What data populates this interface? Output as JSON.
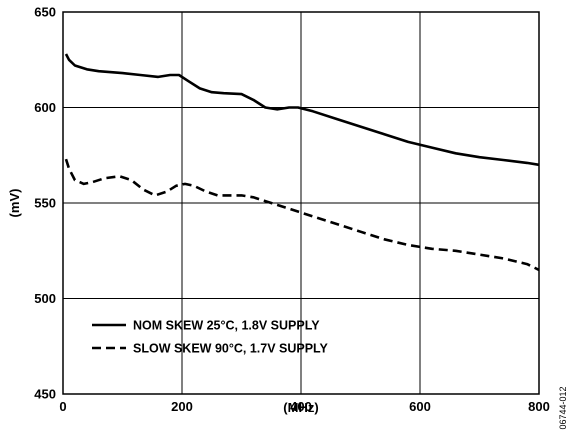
{
  "figure_id": "06744-012",
  "chart_data": {
    "type": "line",
    "title": "",
    "xlabel": "(MHz)",
    "ylabel": "(mV)",
    "xlim": [
      0,
      800
    ],
    "ylim": [
      450,
      650
    ],
    "xticks": [
      0,
      200,
      400,
      600,
      800
    ],
    "yticks": [
      450,
      500,
      550,
      600,
      650
    ],
    "grid": true,
    "legend_position": "bottom-left",
    "series": [
      {
        "name": "NOM SKEW 25°C, 1.8V SUPPLY",
        "style": "solid",
        "points": [
          [
            5,
            628
          ],
          [
            10,
            625
          ],
          [
            20,
            622
          ],
          [
            40,
            620
          ],
          [
            60,
            619
          ],
          [
            100,
            618
          ],
          [
            130,
            617
          ],
          [
            160,
            616
          ],
          [
            180,
            617
          ],
          [
            195,
            617
          ],
          [
            210,
            614
          ],
          [
            230,
            610
          ],
          [
            250,
            608
          ],
          [
            270,
            607.5
          ],
          [
            300,
            607
          ],
          [
            320,
            604
          ],
          [
            340,
            600
          ],
          [
            360,
            599
          ],
          [
            380,
            600
          ],
          [
            395,
            600
          ],
          [
            420,
            598
          ],
          [
            460,
            594
          ],
          [
            500,
            590
          ],
          [
            540,
            586
          ],
          [
            580,
            582
          ],
          [
            620,
            579
          ],
          [
            660,
            576
          ],
          [
            700,
            574
          ],
          [
            740,
            572.5
          ],
          [
            780,
            571
          ],
          [
            800,
            570
          ]
        ]
      },
      {
        "name": "SLOW SKEW 90°C, 1.7V SUPPLY",
        "style": "dashed",
        "points": [
          [
            5,
            573
          ],
          [
            10,
            568
          ],
          [
            20,
            562
          ],
          [
            35,
            560
          ],
          [
            50,
            561
          ],
          [
            70,
            563
          ],
          [
            95,
            564
          ],
          [
            115,
            562
          ],
          [
            135,
            557
          ],
          [
            155,
            554
          ],
          [
            175,
            556
          ],
          [
            190,
            559
          ],
          [
            205,
            560
          ],
          [
            220,
            559
          ],
          [
            240,
            556
          ],
          [
            260,
            554
          ],
          [
            280,
            554
          ],
          [
            300,
            554
          ],
          [
            320,
            553
          ],
          [
            340,
            551
          ],
          [
            380,
            547
          ],
          [
            420,
            543
          ],
          [
            460,
            539
          ],
          [
            500,
            535
          ],
          [
            540,
            531
          ],
          [
            580,
            528
          ],
          [
            620,
            526
          ],
          [
            660,
            525
          ],
          [
            700,
            523
          ],
          [
            740,
            521
          ],
          [
            780,
            518
          ],
          [
            800,
            515
          ]
        ]
      }
    ]
  }
}
